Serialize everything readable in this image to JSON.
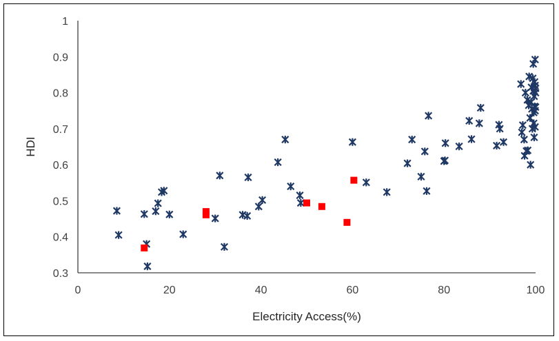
{
  "chart_data": {
    "type": "scatter",
    "title": "",
    "xlabel": "Electricity Access(%)",
    "ylabel": "HDI",
    "xlim": [
      0,
      100
    ],
    "ylim": [
      0.3,
      1.0
    ],
    "x_ticks": [
      "0",
      "20",
      "40",
      "60",
      "80",
      "100"
    ],
    "y_ticks": [
      "0.3",
      "0.4",
      "0.5",
      "0.6",
      "0.7",
      "0.8",
      "0.9",
      "1"
    ],
    "grid": false,
    "legend": "none",
    "series": [
      {
        "marker": "x-star",
        "color": "#1f3864",
        "points": [
          [
            8.5,
            0.472
          ],
          [
            8.9,
            0.405
          ],
          [
            14.5,
            0.463
          ],
          [
            15.0,
            0.38
          ],
          [
            15.2,
            0.318
          ],
          [
            17.0,
            0.471
          ],
          [
            17.5,
            0.493
          ],
          [
            18.3,
            0.524
          ],
          [
            18.8,
            0.528
          ],
          [
            20.0,
            0.462
          ],
          [
            23.0,
            0.407
          ],
          [
            30.0,
            0.451
          ],
          [
            31.0,
            0.57
          ],
          [
            32.0,
            0.372
          ],
          [
            36.0,
            0.461
          ],
          [
            37.0,
            0.458
          ],
          [
            37.2,
            0.565
          ],
          [
            39.5,
            0.484
          ],
          [
            40.3,
            0.502
          ],
          [
            43.7,
            0.607
          ],
          [
            45.3,
            0.67
          ],
          [
            46.5,
            0.54
          ],
          [
            48.5,
            0.515
          ],
          [
            48.7,
            0.494
          ],
          [
            60.0,
            0.663
          ],
          [
            63.0,
            0.551
          ],
          [
            67.5,
            0.524
          ],
          [
            72.0,
            0.604
          ],
          [
            73.0,
            0.67
          ],
          [
            75.0,
            0.567
          ],
          [
            75.8,
            0.637
          ],
          [
            76.2,
            0.527
          ],
          [
            76.6,
            0.736
          ],
          [
            80.0,
            0.61
          ],
          [
            80.2,
            0.612
          ],
          [
            80.3,
            0.66
          ],
          [
            83.3,
            0.651
          ],
          [
            85.5,
            0.722
          ],
          [
            86.0,
            0.671
          ],
          [
            87.7,
            0.715
          ],
          [
            88.0,
            0.758
          ],
          [
            91.5,
            0.653
          ],
          [
            92.0,
            0.711
          ],
          [
            92.2,
            0.7
          ],
          [
            93.0,
            0.663
          ],
          [
            96.8,
            0.824
          ],
          [
            97.0,
            0.69
          ],
          [
            97.2,
            0.71
          ],
          [
            97.5,
            0.67
          ],
          [
            97.6,
            0.625
          ],
          [
            97.8,
            0.8
          ],
          [
            98.0,
            0.638
          ],
          [
            98.2,
            0.78
          ],
          [
            98.3,
            0.64
          ],
          [
            98.5,
            0.765
          ],
          [
            98.6,
            0.845
          ],
          [
            98.8,
            0.73
          ],
          [
            98.9,
            0.6
          ],
          [
            99.0,
            0.774
          ],
          [
            99.1,
            0.815
          ],
          [
            99.2,
            0.755
          ],
          [
            99.3,
            0.7
          ],
          [
            99.4,
            0.84
          ],
          [
            99.5,
            0.88
          ],
          [
            99.5,
            0.805
          ],
          [
            99.6,
            0.745
          ],
          [
            99.6,
            0.715
          ],
          [
            99.7,
            0.676
          ],
          [
            99.7,
            0.79
          ],
          [
            99.8,
            0.83
          ],
          [
            99.8,
            0.762
          ],
          [
            99.9,
            0.892
          ],
          [
            99.9,
            0.82
          ],
          [
            99.9,
            0.75
          ],
          [
            99.9,
            0.705
          ],
          [
            100.0,
            0.812
          ],
          [
            100.0,
            0.76
          ],
          [
            100.0,
            0.8
          ]
        ]
      },
      {
        "marker": "square",
        "color": "#ff0000",
        "points": [
          [
            14.5,
            0.369
          ],
          [
            28.0,
            0.47
          ],
          [
            28.0,
            0.461
          ],
          [
            50.0,
            0.494
          ],
          [
            53.3,
            0.484
          ],
          [
            58.8,
            0.44
          ],
          [
            60.3,
            0.557
          ]
        ]
      }
    ]
  }
}
